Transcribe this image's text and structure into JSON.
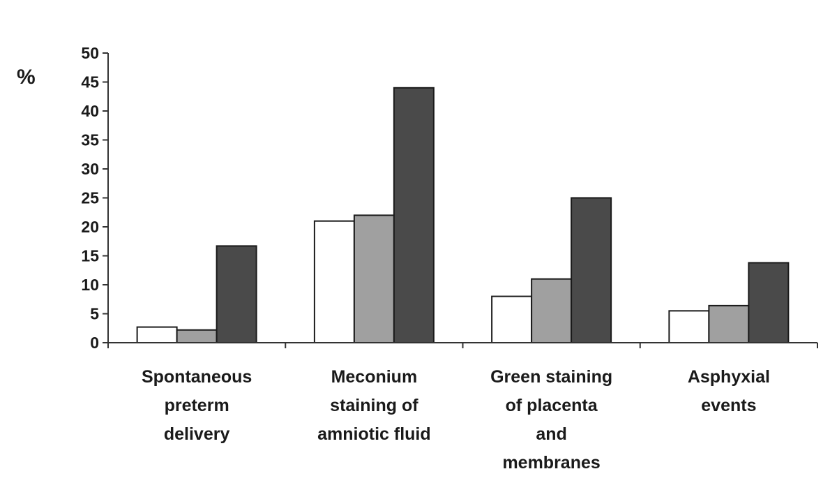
{
  "chart_data": {
    "type": "bar",
    "title": "",
    "xlabel": "",
    "ylabel": "%",
    "ylim": [
      0,
      50
    ],
    "yticks": [
      0,
      5,
      10,
      15,
      20,
      25,
      30,
      35,
      40,
      45,
      50
    ],
    "grid": false,
    "categories": [
      [
        "Spontaneous",
        "preterm",
        "delivery"
      ],
      [
        "Meconium",
        "staining of",
        "amniotic fluid"
      ],
      [
        "Green staining",
        "of placenta",
        "and",
        "membranes"
      ],
      [
        "Asphyxial",
        "events"
      ]
    ],
    "series": [
      {
        "color": "#ffffff",
        "values": [
          2.7,
          21,
          8,
          5.5
        ]
      },
      {
        "color": "#a0a0a0",
        "values": [
          2.2,
          22,
          11,
          6.4
        ]
      },
      {
        "color": "#4a4a4a",
        "values": [
          16.7,
          44,
          25,
          13.8
        ]
      }
    ]
  }
}
